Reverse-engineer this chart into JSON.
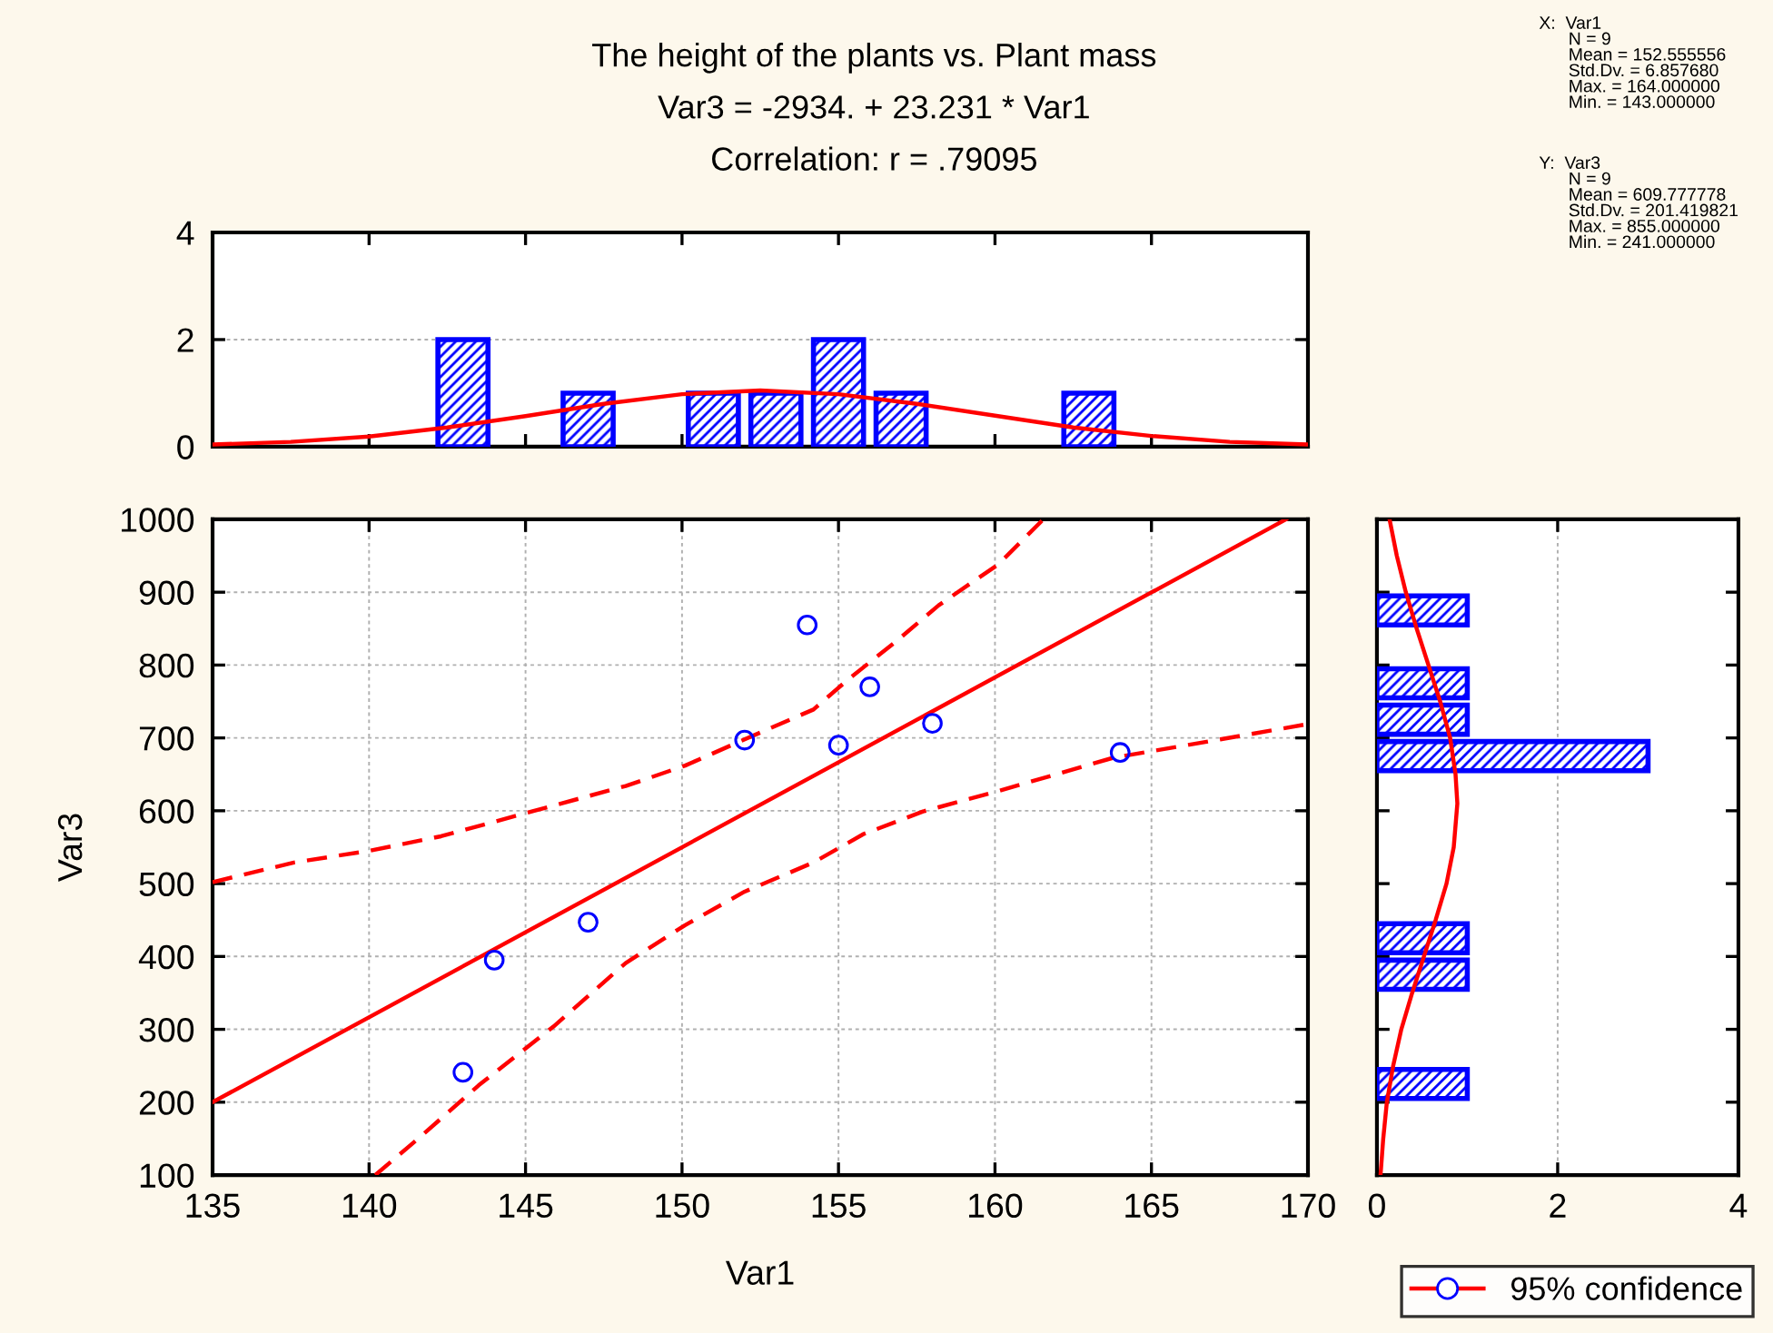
{
  "chart_data": [
    {
      "type": "histogram",
      "title": "The height of the plants vs. Plant mass",
      "subtitle": "Var3 = -2934. + 23.231 * Var1\nCorrelation: r = .79095",
      "annotations": [
        "X:  Var1\n      N = 9\n      Mean = 152.555556\n      Std.Dv. = 6.857680\n      Max. = 164.000000\n      Min. = 143.000000",
        "Y:  Var3\n      N = 9\n      Mean = 609.777778\n      Std.Dv. = 201.419821\n      Max. = 855.000000\n      Min. = 241.000000"
      ],
      "series": [
        {
          "color": "#0000ff",
          "bins": [
            142,
            144,
            146,
            148,
            150,
            152,
            154,
            156,
            158,
            160,
            162,
            164
          ],
          "values": [
            2,
            0,
            1,
            0,
            1,
            1,
            2,
            1,
            0,
            0,
            1
          ]
        },
        {
          "type": "line",
          "color": "#ff0000",
          "x": [
            135,
            137.5,
            140,
            142.5,
            145,
            147.5,
            150,
            152.5,
            155,
            157.5,
            160,
            162.5,
            165,
            167.5,
            170
          ],
          "values": [
            0.04,
            0.09,
            0.19,
            0.36,
            0.57,
            0.8,
            0.98,
            1.05,
            0.98,
            0.8,
            0.58,
            0.36,
            0.2,
            0.09,
            0.04
          ]
        }
      ],
      "xlim": [
        135,
        170
      ],
      "xticks": [
        135,
        140,
        145,
        150,
        155,
        160,
        165,
        170
      ],
      "ylim": [
        0,
        4
      ],
      "yticks": [
        0,
        2,
        4
      ],
      "grid": "y",
      "tick_labels": "y"
    },
    {
      "type": "scatter",
      "xlabel": "Var1",
      "ylabel": "Var3",
      "legend": "bottom right",
      "series": [
        {
          "marker": "circle",
          "color": "#0000ff",
          "x": [
            143,
            144,
            147,
            152,
            154,
            155,
            156,
            158,
            164
          ],
          "values": [
            241,
            395,
            447,
            697,
            855,
            690,
            770,
            720,
            680
          ]
        },
        {
          "type": "line",
          "color": "#ff0000",
          "x": [
            135,
            169.3
          ],
          "values": [
            200,
            1000
          ]
        },
        {
          "type": "line",
          "name": "95% confidence",
          "color": "#ff0000",
          "line_style": "dashed",
          "x": [
            135,
            137.6,
            140,
            142.3,
            145.2,
            148.2,
            150.1,
            152,
            154.2,
            155.3,
            156.8,
            158.2,
            160.1,
            161.5
          ],
          "values": [
            502,
            529,
            545,
            565,
            599,
            634,
            662,
            698,
            739,
            780,
            831,
            882,
            938,
            998
          ]
        },
        {
          "type": "line",
          "color": "#ff0000",
          "line_style": "dashed",
          "x": [
            140.2,
            141.6,
            143.5,
            145.9,
            148.2,
            150.1,
            152,
            154.2,
            155.8,
            157.7,
            160.1,
            163.8,
            167.2,
            170
          ],
          "values": [
            100,
            151,
            223,
            304,
            391,
            443,
            489,
            529,
            568,
            599,
            627,
            673,
            698,
            719
          ]
        }
      ],
      "xlim": [
        135,
        170
      ],
      "xticks": [
        135,
        140,
        145,
        150,
        155,
        160,
        165,
        170
      ],
      "ylim": [
        100,
        1000
      ],
      "yticks": [
        100,
        200,
        300,
        400,
        500,
        600,
        700,
        800,
        900,
        1000
      ],
      "grid": true
    },
    {
      "type": "histogram",
      "orientation": "horizontal",
      "series": [
        {
          "color": "#0000ff",
          "bins": [
            200,
            250,
            300,
            350,
            400,
            450,
            500,
            550,
            600,
            650,
            700,
            750,
            800,
            850,
            900
          ],
          "values": [
            1,
            0,
            0,
            1,
            1,
            0,
            0,
            0,
            0,
            3,
            1,
            1,
            0,
            1
          ]
        },
        {
          "type": "line",
          "color": "#ff0000",
          "x": [
            100,
            150,
            200,
            250,
            300,
            350,
            400,
            450,
            500,
            550,
            610,
            650,
            700,
            750,
            800,
            850,
            900,
            950,
            1000
          ],
          "values": [
            0.04,
            0.07,
            0.11,
            0.18,
            0.27,
            0.39,
            0.52,
            0.65,
            0.77,
            0.85,
            0.89,
            0.87,
            0.81,
            0.7,
            0.57,
            0.44,
            0.32,
            0.22,
            0.14
          ]
        }
      ],
      "xlim": [
        0,
        4
      ],
      "xticks": [
        0,
        2,
        4
      ],
      "ylim": [
        100,
        1000
      ],
      "yticks": [
        100,
        200,
        300,
        400,
        500,
        600,
        700,
        800,
        900,
        1000
      ],
      "grid": "x",
      "tick_labels": "x"
    }
  ]
}
